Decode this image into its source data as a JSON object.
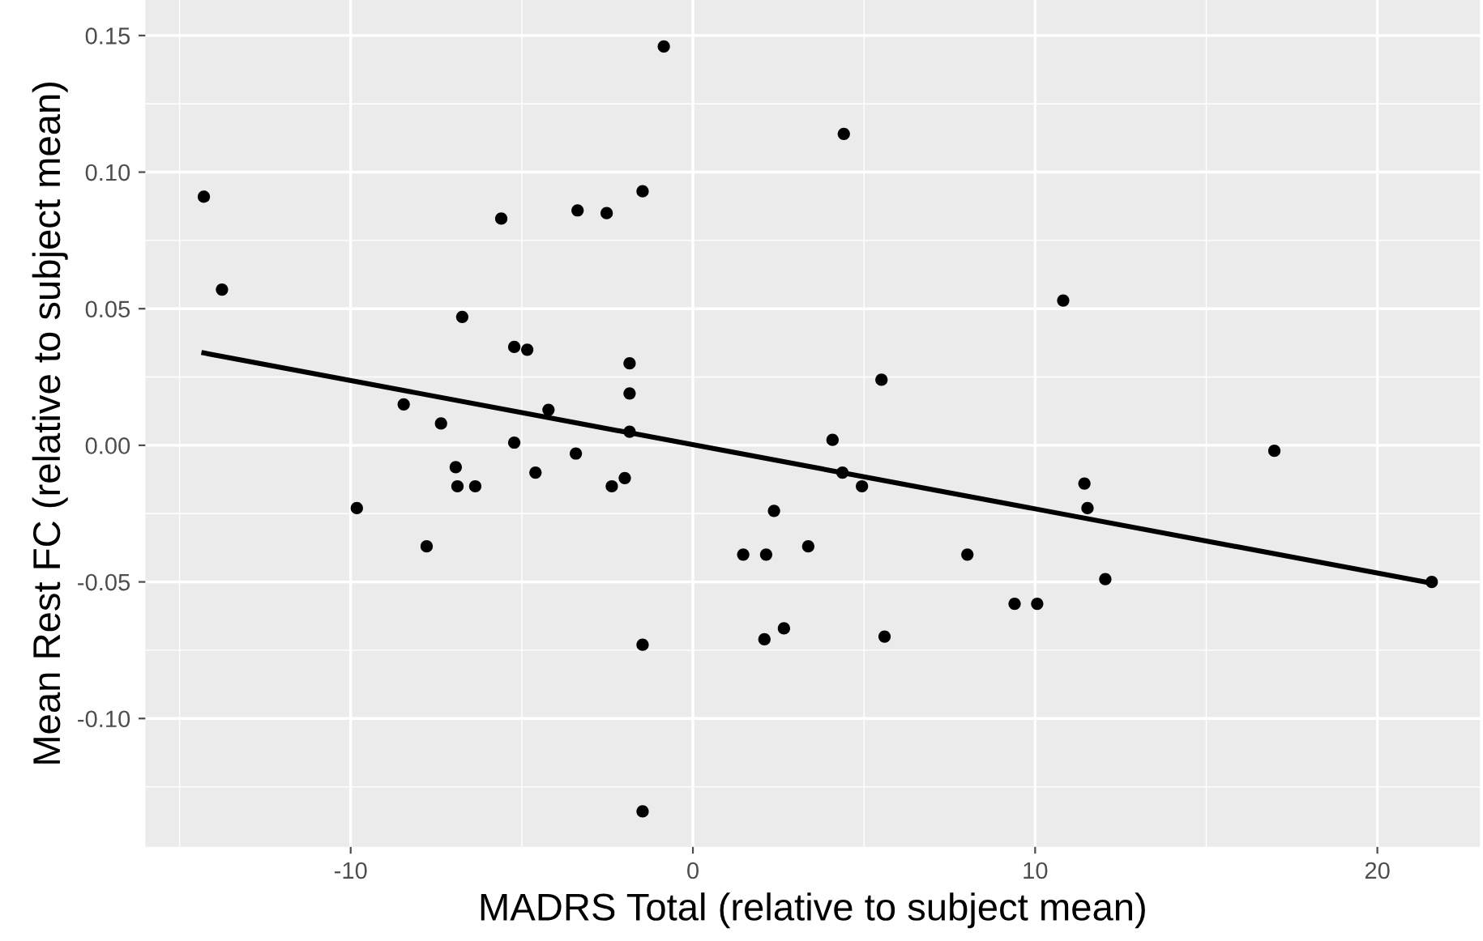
{
  "chart_data": {
    "type": "scatter",
    "xlabel": "MADRS Total (relative to subject mean)",
    "ylabel": "Mean Rest FC (relative to subject mean)",
    "xlim": [
      -16.0,
      23.0
    ],
    "ylim": [
      -0.147,
      0.163
    ],
    "xticks": [
      -10,
      0,
      10,
      20
    ],
    "yticks": [
      {
        "value": -0.1,
        "label": "-0.10"
      },
      {
        "value": -0.05,
        "label": "-0.05"
      },
      {
        "value": 0,
        "label": "0.00"
      },
      {
        "value": 0.05,
        "label": "0.05"
      },
      {
        "value": 0.1,
        "label": "0.10"
      },
      {
        "value": 0.15,
        "label": "0.15"
      }
    ],
    "grid": true,
    "series": [
      {
        "marker": "circle",
        "color": "#000000",
        "x": [
          -14.29,
          -13.76,
          -8.45,
          -9.82,
          -7.78,
          -7.36,
          -6.74,
          -6.93,
          -6.88,
          -6.36,
          -5.6,
          -5.22,
          -4.84,
          -5.22,
          -4.6,
          -4.22,
          -3.37,
          -3.42,
          -2.52,
          -2.37,
          -1.99,
          -1.85,
          -1.85,
          -1.85,
          -1.47,
          -1.47,
          -1.47,
          -0.85,
          1.47,
          2.14,
          2.09,
          2.37,
          2.66,
          3.37,
          4.08,
          4.41,
          4.37,
          4.94,
          5.51,
          5.6,
          8.02,
          9.4,
          10.06,
          10.82,
          11.44,
          11.53,
          12.05,
          16.99,
          21.59
        ],
        "values": [
          0.091,
          0.057,
          0.015,
          -0.023,
          -0.037,
          0.008,
          0.047,
          -0.008,
          -0.015,
          -0.015,
          0.083,
          0.036,
          0.035,
          0.001,
          -0.01,
          0.013,
          0.086,
          -0.003,
          0.085,
          -0.015,
          -0.012,
          0.03,
          0.019,
          0.005,
          0.093,
          -0.073,
          -0.134,
          0.146,
          -0.04,
          -0.04,
          -0.071,
          -0.024,
          -0.067,
          -0.037,
          0.002,
          0.114,
          -0.01,
          -0.015,
          0.024,
          -0.07,
          -0.04,
          -0.058,
          -0.058,
          0.053,
          -0.014,
          -0.023,
          -0.049,
          -0.002,
          -0.05
        ]
      },
      {
        "type": "line",
        "marker": "none",
        "color": "#000000",
        "x": [
          -14.29,
          21.59
        ],
        "values": [
          0.0338,
          -0.0505
        ]
      }
    ]
  }
}
